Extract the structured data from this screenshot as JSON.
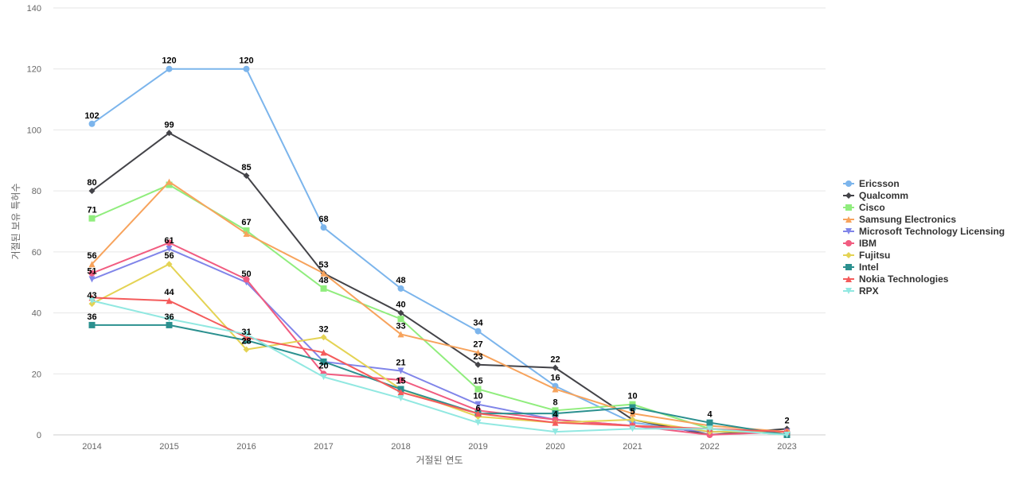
{
  "chart_data": {
    "type": "line",
    "title": "",
    "xlabel": "거절된 연도",
    "ylabel": "거절된 보유 특허수",
    "x": [
      "2014",
      "2015",
      "2016",
      "2017",
      "2018",
      "2019",
      "2020",
      "2021",
      "2022",
      "2023"
    ],
    "ylim": [
      0,
      140
    ],
    "yticks": [
      0,
      20,
      40,
      60,
      80,
      100,
      120,
      140
    ],
    "grid": true,
    "legend_position": "right",
    "series": [
      {
        "name": "Ericsson",
        "color": "#7cb5ec",
        "marker": "circle",
        "values": [
          102,
          120,
          120,
          68,
          48,
          34,
          16,
          4,
          1,
          1
        ],
        "labeled": [
          true,
          true,
          true,
          true,
          true,
          true,
          true,
          false,
          false,
          false
        ]
      },
      {
        "name": "Qualcomm",
        "color": "#434348",
        "marker": "diamond",
        "values": [
          80,
          99,
          85,
          53,
          40,
          23,
          22,
          5,
          0,
          2
        ],
        "labeled": [
          true,
          true,
          true,
          true,
          true,
          true,
          true,
          true,
          false,
          true
        ]
      },
      {
        "name": "Cisco",
        "color": "#90ed7d",
        "marker": "square",
        "values": [
          71,
          82,
          67,
          48,
          38,
          15,
          8,
          10,
          2,
          0
        ],
        "labeled": [
          true,
          false,
          true,
          true,
          false,
          true,
          true,
          true,
          false,
          false
        ]
      },
      {
        "name": "Samsung Electronics",
        "color": "#f7a35c",
        "marker": "triangle",
        "values": [
          56,
          83,
          66,
          53,
          33,
          27,
          15,
          7,
          3,
          1
        ],
        "labeled": [
          true,
          false,
          false,
          false,
          true,
          true,
          false,
          false,
          false,
          false
        ]
      },
      {
        "name": "Microsoft Technology Licensing",
        "color": "#8085e9",
        "marker": "triangle-down",
        "values": [
          51,
          61,
          50,
          24,
          21,
          10,
          5,
          3,
          1,
          1
        ],
        "labeled": [
          true,
          true,
          true,
          false,
          true,
          true,
          false,
          false,
          false,
          false
        ]
      },
      {
        "name": "IBM",
        "color": "#f15c80",
        "marker": "circle",
        "values": [
          53,
          63,
          51,
          20,
          18,
          8,
          5,
          3,
          0,
          1
        ],
        "labeled": [
          false,
          false,
          false,
          true,
          false,
          false,
          false,
          false,
          false,
          false
        ]
      },
      {
        "name": "Fujitsu",
        "color": "#e4d354",
        "marker": "diamond",
        "values": [
          43,
          56,
          28,
          32,
          15,
          6,
          4,
          5,
          1,
          1
        ],
        "labeled": [
          true,
          true,
          true,
          true,
          true,
          true,
          true,
          true,
          false,
          false
        ]
      },
      {
        "name": "Intel",
        "color": "#2b908f",
        "marker": "square",
        "values": [
          36,
          36,
          31,
          24,
          15,
          7,
          7,
          9,
          4,
          0
        ],
        "labeled": [
          true,
          true,
          true,
          false,
          false,
          false,
          false,
          false,
          true,
          false
        ]
      },
      {
        "name": "Nokia Technologies",
        "color": "#f45b5b",
        "marker": "triangle",
        "values": [
          45,
          44,
          32,
          27,
          14,
          7,
          4,
          3,
          2,
          1
        ],
        "labeled": [
          false,
          true,
          false,
          false,
          false,
          false,
          false,
          false,
          false,
          false
        ]
      },
      {
        "name": "RPX",
        "color": "#91e8e1",
        "marker": "triangle-down",
        "values": [
          44,
          38,
          33,
          19,
          12,
          4,
          1,
          2,
          2,
          0
        ],
        "labeled": [
          false,
          false,
          false,
          false,
          false,
          false,
          false,
          false,
          false,
          false
        ]
      }
    ]
  }
}
